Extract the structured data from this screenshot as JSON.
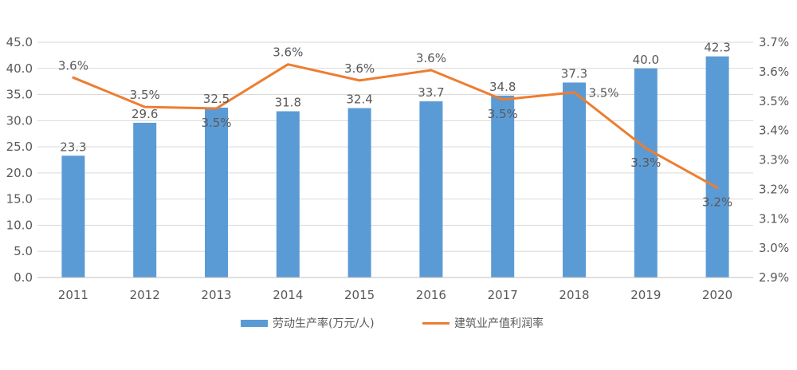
{
  "chart_data": {
    "type": "bar",
    "categories": [
      "2011",
      "2012",
      "2013",
      "2014",
      "2015",
      "2016",
      "2017",
      "2018",
      "2019",
      "2020"
    ],
    "series": [
      {
        "name": "劳动生产率(万元/人)",
        "type": "bar",
        "axis": "left",
        "color": "#5b9bd5",
        "values": [
          23.3,
          29.6,
          32.5,
          31.8,
          32.4,
          33.7,
          34.8,
          37.3,
          40.0,
          42.3
        ],
        "labels": [
          "23.3",
          "29.6",
          "32.5",
          "31.8",
          "32.4",
          "33.7",
          "34.8",
          "37.3",
          "40.0",
          "42.3"
        ]
      },
      {
        "name": "建筑业产值利润率",
        "type": "line",
        "axis": "right",
        "color": "#ed7d31",
        "values": [
          3.58,
          3.48,
          3.475,
          3.625,
          3.57,
          3.605,
          3.505,
          3.53,
          3.34,
          3.205
        ],
        "labels": [
          "3.6%",
          "3.5%",
          "3.5%",
          "3.6%",
          "3.6%",
          "3.6%",
          "3.5%",
          "3.5%",
          "3.3%",
          "3.2%"
        ]
      }
    ],
    "ylim_left": [
      0,
      45
    ],
    "yticks_left": [
      "0.0",
      "5.0",
      "10.0",
      "15.0",
      "20.0",
      "25.0",
      "30.0",
      "35.0",
      "40.0",
      "45.0"
    ],
    "ylim_right": [
      2.9,
      3.7
    ],
    "yticks_right": [
      "2.9%",
      "3.0%",
      "3.1%",
      "3.2%",
      "3.3%",
      "3.4%",
      "3.5%",
      "3.6%",
      "3.7%"
    ],
    "grid": true,
    "legend_position": "bottom"
  }
}
